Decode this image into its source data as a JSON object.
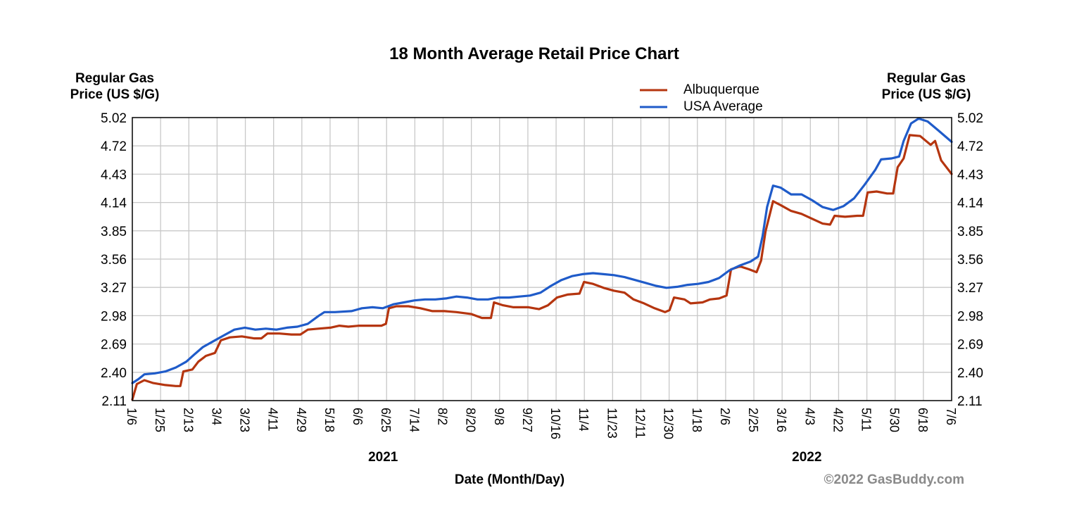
{
  "chart_data": {
    "type": "line",
    "title": "18 Month Average Retail Price Chart",
    "ylabel_left": [
      "Regular Gas",
      "Price (US $/G)"
    ],
    "ylabel_right": [
      "Regular Gas",
      "Price (US $/G)"
    ],
    "xlabel": "Date (Month/Day)",
    "credit": "©2022 GasBuddy.com",
    "ylim": [
      2.11,
      5.02
    ],
    "y_ticks": [
      "5.02",
      "4.72",
      "4.43",
      "4.14",
      "3.85",
      "3.56",
      "3.27",
      "2.98",
      "2.69",
      "2.40",
      "2.11"
    ],
    "x_ticks": [
      "1/6",
      "1/25",
      "2/13",
      "3/4",
      "3/23",
      "4/11",
      "4/29",
      "5/18",
      "6/6",
      "6/25",
      "7/14",
      "8/2",
      "8/20",
      "9/8",
      "9/27",
      "10/16",
      "11/4",
      "11/23",
      "12/11",
      "12/30",
      "1/18",
      "2/6",
      "2/25",
      "3/16",
      "4/3",
      "4/22",
      "5/11",
      "5/30",
      "6/18",
      "7/6"
    ],
    "year_labels": [
      {
        "label": "2021",
        "at_tick": "6/25"
      },
      {
        "label": "2022",
        "at_tick": "4/3"
      }
    ],
    "grid": true,
    "legend_position": "top-right",
    "colors": {
      "Albuquerque": "#b5350f",
      "USA Average": "#1f5bc9"
    },
    "x_domain": [
      "2021-01-06",
      "2022-07-06"
    ],
    "series": [
      {
        "name": "Albuquerque",
        "points": [
          [
            "2021-01-06",
            2.12
          ],
          [
            "2021-01-09",
            2.28
          ],
          [
            "2021-01-14",
            2.32
          ],
          [
            "2021-01-20",
            2.29
          ],
          [
            "2021-01-28",
            2.27
          ],
          [
            "2021-02-04",
            2.26
          ],
          [
            "2021-02-07",
            2.26
          ],
          [
            "2021-02-09",
            2.41
          ],
          [
            "2021-02-15",
            2.43
          ],
          [
            "2021-02-19",
            2.51
          ],
          [
            "2021-02-24",
            2.57
          ],
          [
            "2021-03-02",
            2.6
          ],
          [
            "2021-03-06",
            2.73
          ],
          [
            "2021-03-12",
            2.76
          ],
          [
            "2021-03-20",
            2.77
          ],
          [
            "2021-03-28",
            2.75
          ],
          [
            "2021-04-02",
            2.75
          ],
          [
            "2021-04-06",
            2.8
          ],
          [
            "2021-04-14",
            2.8
          ],
          [
            "2021-04-22",
            2.79
          ],
          [
            "2021-04-28",
            2.79
          ],
          [
            "2021-05-03",
            2.84
          ],
          [
            "2021-05-10",
            2.85
          ],
          [
            "2021-05-18",
            2.86
          ],
          [
            "2021-05-24",
            2.88
          ],
          [
            "2021-05-30",
            2.87
          ],
          [
            "2021-06-06",
            2.88
          ],
          [
            "2021-06-14",
            2.88
          ],
          [
            "2021-06-21",
            2.88
          ],
          [
            "2021-06-24",
            2.9
          ],
          [
            "2021-06-26",
            3.06
          ],
          [
            "2021-07-01",
            3.08
          ],
          [
            "2021-07-09",
            3.08
          ],
          [
            "2021-07-17",
            3.06
          ],
          [
            "2021-07-25",
            3.03
          ],
          [
            "2021-08-02",
            3.03
          ],
          [
            "2021-08-10",
            3.02
          ],
          [
            "2021-08-20",
            3.0
          ],
          [
            "2021-08-27",
            2.96
          ],
          [
            "2021-09-02",
            2.96
          ],
          [
            "2021-09-04",
            3.12
          ],
          [
            "2021-09-10",
            3.09
          ],
          [
            "2021-09-17",
            3.07
          ],
          [
            "2021-09-27",
            3.07
          ],
          [
            "2021-10-04",
            3.05
          ],
          [
            "2021-10-10",
            3.09
          ],
          [
            "2021-10-16",
            3.17
          ],
          [
            "2021-10-23",
            3.2
          ],
          [
            "2021-10-31",
            3.21
          ],
          [
            "2021-11-03",
            3.33
          ],
          [
            "2021-11-09",
            3.31
          ],
          [
            "2021-11-16",
            3.27
          ],
          [
            "2021-11-23",
            3.24
          ],
          [
            "2021-11-30",
            3.22
          ],
          [
            "2021-12-06",
            3.15
          ],
          [
            "2021-12-13",
            3.11
          ],
          [
            "2021-12-20",
            3.06
          ],
          [
            "2021-12-27",
            3.02
          ],
          [
            "2021-12-30",
            3.04
          ],
          [
            "2022-01-02",
            3.17
          ],
          [
            "2022-01-09",
            3.15
          ],
          [
            "2022-01-13",
            3.11
          ],
          [
            "2022-01-21",
            3.12
          ],
          [
            "2022-01-26",
            3.15
          ],
          [
            "2022-02-01",
            3.16
          ],
          [
            "2022-02-06",
            3.19
          ],
          [
            "2022-02-09",
            3.46
          ],
          [
            "2022-02-15",
            3.49
          ],
          [
            "2022-02-21",
            3.46
          ],
          [
            "2022-02-26",
            3.43
          ],
          [
            "2022-03-01",
            3.55
          ],
          [
            "2022-03-04",
            3.85
          ],
          [
            "2022-03-09",
            4.16
          ],
          [
            "2022-03-14",
            4.12
          ],
          [
            "2022-03-21",
            4.06
          ],
          [
            "2022-03-28",
            4.03
          ],
          [
            "2022-04-04",
            3.98
          ],
          [
            "2022-04-11",
            3.93
          ],
          [
            "2022-04-16",
            3.92
          ],
          [
            "2022-04-19",
            4.01
          ],
          [
            "2022-04-26",
            4.0
          ],
          [
            "2022-05-04",
            4.01
          ],
          [
            "2022-05-08",
            4.01
          ],
          [
            "2022-05-11",
            4.25
          ],
          [
            "2022-05-17",
            4.26
          ],
          [
            "2022-05-24",
            4.24
          ],
          [
            "2022-05-28",
            4.24
          ],
          [
            "2022-05-31",
            4.51
          ],
          [
            "2022-06-04",
            4.6
          ],
          [
            "2022-06-08",
            4.84
          ],
          [
            "2022-06-15",
            4.83
          ],
          [
            "2022-06-22",
            4.74
          ],
          [
            "2022-06-25",
            4.78
          ],
          [
            "2022-06-29",
            4.58
          ],
          [
            "2022-07-06",
            4.44
          ]
        ]
      },
      {
        "name": "USA Average",
        "points": [
          [
            "2021-01-06",
            2.29
          ],
          [
            "2021-01-10",
            2.33
          ],
          [
            "2021-01-14",
            2.38
          ],
          [
            "2021-01-21",
            2.39
          ],
          [
            "2021-01-28",
            2.41
          ],
          [
            "2021-02-04",
            2.45
          ],
          [
            "2021-02-11",
            2.51
          ],
          [
            "2021-02-16",
            2.58
          ],
          [
            "2021-02-22",
            2.66
          ],
          [
            "2021-03-01",
            2.72
          ],
          [
            "2021-03-08",
            2.78
          ],
          [
            "2021-03-15",
            2.84
          ],
          [
            "2021-03-22",
            2.86
          ],
          [
            "2021-03-29",
            2.84
          ],
          [
            "2021-04-05",
            2.85
          ],
          [
            "2021-04-12",
            2.84
          ],
          [
            "2021-04-19",
            2.86
          ],
          [
            "2021-04-26",
            2.87
          ],
          [
            "2021-05-03",
            2.9
          ],
          [
            "2021-05-10",
            2.98
          ],
          [
            "2021-05-14",
            3.02
          ],
          [
            "2021-05-21",
            3.02
          ],
          [
            "2021-06-01",
            3.03
          ],
          [
            "2021-06-08",
            3.06
          ],
          [
            "2021-06-15",
            3.07
          ],
          [
            "2021-06-22",
            3.06
          ],
          [
            "2021-06-29",
            3.1
          ],
          [
            "2021-07-06",
            3.12
          ],
          [
            "2021-07-13",
            3.14
          ],
          [
            "2021-07-20",
            3.15
          ],
          [
            "2021-07-27",
            3.15
          ],
          [
            "2021-08-03",
            3.16
          ],
          [
            "2021-08-10",
            3.18
          ],
          [
            "2021-08-17",
            3.17
          ],
          [
            "2021-08-24",
            3.15
          ],
          [
            "2021-08-31",
            3.15
          ],
          [
            "2021-09-07",
            3.17
          ],
          [
            "2021-09-14",
            3.17
          ],
          [
            "2021-09-21",
            3.18
          ],
          [
            "2021-09-28",
            3.19
          ],
          [
            "2021-10-05",
            3.22
          ],
          [
            "2021-10-12",
            3.29
          ],
          [
            "2021-10-19",
            3.35
          ],
          [
            "2021-10-26",
            3.39
          ],
          [
            "2021-11-02",
            3.41
          ],
          [
            "2021-11-09",
            3.42
          ],
          [
            "2021-11-16",
            3.41
          ],
          [
            "2021-11-23",
            3.4
          ],
          [
            "2021-11-30",
            3.38
          ],
          [
            "2021-12-07",
            3.35
          ],
          [
            "2021-12-14",
            3.32
          ],
          [
            "2021-12-21",
            3.29
          ],
          [
            "2021-12-28",
            3.27
          ],
          [
            "2022-01-04",
            3.28
          ],
          [
            "2022-01-11",
            3.3
          ],
          [
            "2022-01-18",
            3.31
          ],
          [
            "2022-01-25",
            3.33
          ],
          [
            "2022-02-01",
            3.37
          ],
          [
            "2022-02-08",
            3.45
          ],
          [
            "2022-02-15",
            3.5
          ],
          [
            "2022-02-22",
            3.54
          ],
          [
            "2022-02-27",
            3.59
          ],
          [
            "2022-03-02",
            3.8
          ],
          [
            "2022-03-05",
            4.1
          ],
          [
            "2022-03-09",
            4.32
          ],
          [
            "2022-03-14",
            4.3
          ],
          [
            "2022-03-21",
            4.23
          ],
          [
            "2022-03-28",
            4.23
          ],
          [
            "2022-04-04",
            4.17
          ],
          [
            "2022-04-11",
            4.1
          ],
          [
            "2022-04-18",
            4.07
          ],
          [
            "2022-04-25",
            4.11
          ],
          [
            "2022-05-02",
            4.19
          ],
          [
            "2022-05-09",
            4.33
          ],
          [
            "2022-05-16",
            4.48
          ],
          [
            "2022-05-20",
            4.59
          ],
          [
            "2022-05-27",
            4.6
          ],
          [
            "2022-06-01",
            4.62
          ],
          [
            "2022-06-04",
            4.78
          ],
          [
            "2022-06-09",
            4.96
          ],
          [
            "2022-06-14",
            5.01
          ],
          [
            "2022-06-20",
            4.98
          ],
          [
            "2022-06-27",
            4.89
          ],
          [
            "2022-07-06",
            4.77
          ]
        ]
      }
    ]
  }
}
